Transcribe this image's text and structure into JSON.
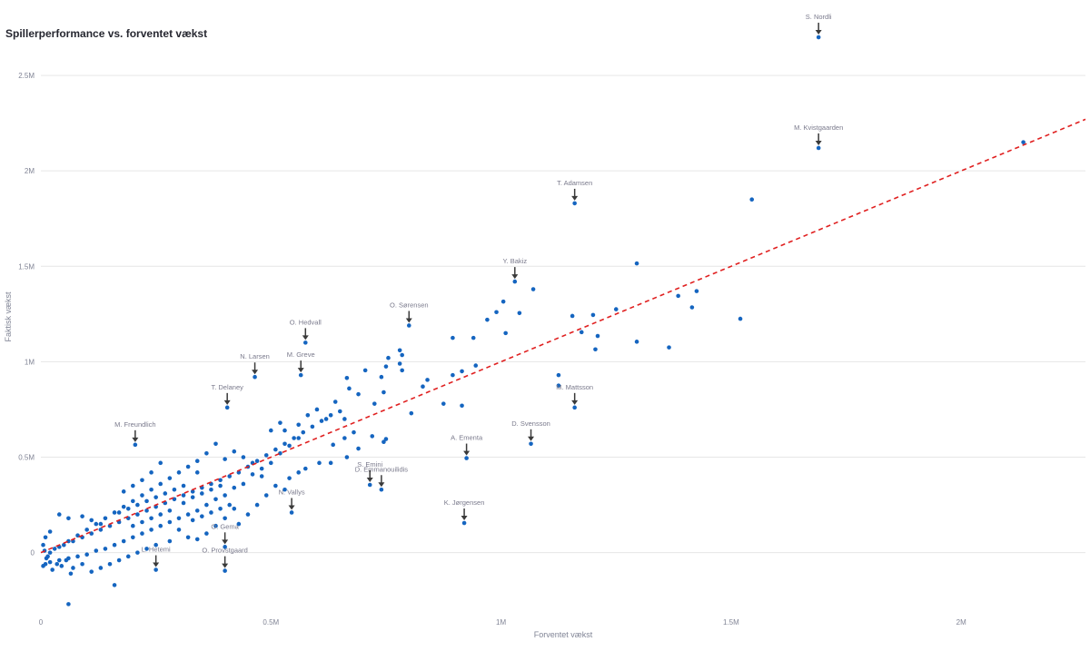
{
  "chart_data": {
    "type": "scatter",
    "title": "Spillerperformance vs. forventet vækst",
    "xlabel": "Forventet vækst",
    "ylabel": "Faktisk vækst",
    "xlim": [
      0,
      2270000
    ],
    "ylim": [
      -330000,
      2800000
    ],
    "x_ticks": [
      {
        "value": 0,
        "label": "0"
      },
      {
        "value": 500000,
        "label": "0.5M"
      },
      {
        "value": 1000000,
        "label": "1M"
      },
      {
        "value": 1500000,
        "label": "1.5M"
      },
      {
        "value": 2000000,
        "label": "2M"
      }
    ],
    "y_ticks": [
      {
        "value": 0,
        "label": "0"
      },
      {
        "value": 500000,
        "label": "0.5M"
      },
      {
        "value": 1000000,
        "label": "1M"
      },
      {
        "value": 1500000,
        "label": "1.5M"
      },
      {
        "value": 2000000,
        "label": "2M"
      },
      {
        "value": 2500000,
        "label": "2.5M"
      }
    ],
    "grid": true,
    "legend": "none",
    "point_color": "#1565c0",
    "trendline": {
      "color": "#e02020",
      "style": "dashed",
      "slope": 1.0,
      "intercept": 0,
      "x_range": [
        0,
        2270000
      ]
    },
    "annotation_color": "#7a7a8c",
    "arrow_color": "#3a3a3a",
    "annotations": [
      {
        "name": "S. Nordli",
        "x": 1690000,
        "y": 2700000
      },
      {
        "name": "M. Kvistgaarden",
        "x": 1690000,
        "y": 2120000
      },
      {
        "name": "T. Adamsen",
        "x": 1160000,
        "y": 1830000
      },
      {
        "name": "Y. Bakiz",
        "x": 1030000,
        "y": 1420000
      },
      {
        "name": "O. Sørensen",
        "x": 800000,
        "y": 1190000
      },
      {
        "name": "O. Hedvall",
        "x": 575000,
        "y": 1100000
      },
      {
        "name": "N. Larsen",
        "x": 465000,
        "y": 920000
      },
      {
        "name": "M. Greve",
        "x": 565000,
        "y": 930000
      },
      {
        "name": "T. Delaney",
        "x": 405000,
        "y": 760000
      },
      {
        "name": "M. Mattsson",
        "x": 1160000,
        "y": 760000
      },
      {
        "name": "M. Freundlich",
        "x": 205000,
        "y": 565000
      },
      {
        "name": "D. Svensson",
        "x": 1065000,
        "y": 570000
      },
      {
        "name": "A. Ementa",
        "x": 925000,
        "y": 495000
      },
      {
        "name": "S. Emini",
        "x": 715000,
        "y": 355000
      },
      {
        "name": "D. Emmanouilidis",
        "x": 740000,
        "y": 330000
      },
      {
        "name": "N. Vallys",
        "x": 545000,
        "y": 210000
      },
      {
        "name": "K. Jørgensen",
        "x": 920000,
        "y": 155000
      },
      {
        "name": "O. Gema",
        "x": 400000,
        "y": 30000
      },
      {
        "name": "L. Hetemi",
        "x": 250000,
        "y": -90000
      },
      {
        "name": "O. Provstgaard",
        "x": 400000,
        "y": -95000
      }
    ],
    "points": [
      [
        1690000,
        2700000
      ],
      [
        1690000,
        2120000
      ],
      [
        1160000,
        1830000
      ],
      [
        1030000,
        1420000
      ],
      [
        800000,
        1190000
      ],
      [
        575000,
        1100000
      ],
      [
        465000,
        920000
      ],
      [
        565000,
        930000
      ],
      [
        405000,
        760000
      ],
      [
        1160000,
        760000
      ],
      [
        205000,
        565000
      ],
      [
        1065000,
        570000
      ],
      [
        925000,
        495000
      ],
      [
        715000,
        355000
      ],
      [
        740000,
        330000
      ],
      [
        545000,
        210000
      ],
      [
        920000,
        155000
      ],
      [
        400000,
        30000
      ],
      [
        250000,
        -90000
      ],
      [
        400000,
        -95000
      ],
      [
        2135000,
        2150000
      ],
      [
        1545000,
        1850000
      ],
      [
        1295000,
        1515000
      ],
      [
        1425000,
        1370000
      ],
      [
        1385000,
        1345000
      ],
      [
        1415000,
        1285000
      ],
      [
        1520000,
        1225000
      ],
      [
        1365000,
        1075000
      ],
      [
        1295000,
        1105000
      ],
      [
        1250000,
        1275000
      ],
      [
        1200000,
        1245000
      ],
      [
        1155000,
        1240000
      ],
      [
        1175000,
        1155000
      ],
      [
        1210000,
        1135000
      ],
      [
        1205000,
        1065000
      ],
      [
        1125000,
        930000
      ],
      [
        1125000,
        875000
      ],
      [
        1070000,
        1380000
      ],
      [
        1040000,
        1255000
      ],
      [
        1005000,
        1315000
      ],
      [
        1010000,
        1150000
      ],
      [
        990000,
        1260000
      ],
      [
        970000,
        1220000
      ],
      [
        940000,
        1125000
      ],
      [
        895000,
        1125000
      ],
      [
        945000,
        980000
      ],
      [
        915000,
        950000
      ],
      [
        895000,
        930000
      ],
      [
        875000,
        780000
      ],
      [
        915000,
        770000
      ],
      [
        840000,
        905000
      ],
      [
        830000,
        870000
      ],
      [
        805000,
        730000
      ],
      [
        785000,
        1035000
      ],
      [
        780000,
        990000
      ],
      [
        785000,
        955000
      ],
      [
        780000,
        1060000
      ],
      [
        755000,
        1020000
      ],
      [
        750000,
        975000
      ],
      [
        740000,
        920000
      ],
      [
        745000,
        840000
      ],
      [
        725000,
        780000
      ],
      [
        705000,
        955000
      ],
      [
        665000,
        915000
      ],
      [
        670000,
        860000
      ],
      [
        690000,
        830000
      ],
      [
        640000,
        790000
      ],
      [
        660000,
        700000
      ],
      [
        720000,
        610000
      ],
      [
        750000,
        595000
      ],
      [
        745000,
        580000
      ],
      [
        690000,
        545000
      ],
      [
        665000,
        500000
      ],
      [
        635000,
        565000
      ],
      [
        630000,
        470000
      ],
      [
        605000,
        470000
      ],
      [
        575000,
        440000
      ],
      [
        560000,
        420000
      ],
      [
        540000,
        390000
      ],
      [
        520000,
        680000
      ],
      [
        560000,
        670000
      ],
      [
        530000,
        640000
      ],
      [
        500000,
        640000
      ],
      [
        560000,
        600000
      ],
      [
        540000,
        560000
      ],
      [
        520000,
        520000
      ],
      [
        500000,
        470000
      ],
      [
        480000,
        440000
      ],
      [
        460000,
        410000
      ],
      [
        440000,
        360000
      ],
      [
        420000,
        340000
      ],
      [
        400000,
        300000
      ],
      [
        380000,
        280000
      ],
      [
        360000,
        250000
      ],
      [
        340000,
        220000
      ],
      [
        320000,
        200000
      ],
      [
        300000,
        180000
      ],
      [
        280000,
        160000
      ],
      [
        260000,
        140000
      ],
      [
        240000,
        120000
      ],
      [
        220000,
        100000
      ],
      [
        200000,
        80000
      ],
      [
        180000,
        60000
      ],
      [
        160000,
        40000
      ],
      [
        140000,
        20000
      ],
      [
        120000,
        10000
      ],
      [
        100000,
        -10000
      ],
      [
        80000,
        -20000
      ],
      [
        60000,
        -30000
      ],
      [
        40000,
        -40000
      ],
      [
        20000,
        -50000
      ],
      [
        10000,
        -60000
      ],
      [
        5000,
        -70000
      ],
      [
        30000,
        20000
      ],
      [
        50000,
        40000
      ],
      [
        70000,
        60000
      ],
      [
        90000,
        80000
      ],
      [
        110000,
        100000
      ],
      [
        130000,
        120000
      ],
      [
        150000,
        140000
      ],
      [
        170000,
        160000
      ],
      [
        190000,
        180000
      ],
      [
        210000,
        200000
      ],
      [
        230000,
        220000
      ],
      [
        250000,
        240000
      ],
      [
        270000,
        260000
      ],
      [
        290000,
        280000
      ],
      [
        310000,
        300000
      ],
      [
        330000,
        320000
      ],
      [
        350000,
        340000
      ],
      [
        370000,
        360000
      ],
      [
        390000,
        380000
      ],
      [
        410000,
        400000
      ],
      [
        430000,
        420000
      ],
      [
        450000,
        450000
      ],
      [
        470000,
        480000
      ],
      [
        490000,
        510000
      ],
      [
        510000,
        540000
      ],
      [
        530000,
        570000
      ],
      [
        550000,
        600000
      ],
      [
        570000,
        630000
      ],
      [
        590000,
        660000
      ],
      [
        610000,
        690000
      ],
      [
        630000,
        720000
      ],
      [
        650000,
        740000
      ],
      [
        380000,
        570000
      ],
      [
        360000,
        520000
      ],
      [
        340000,
        480000
      ],
      [
        320000,
        450000
      ],
      [
        300000,
        420000
      ],
      [
        280000,
        390000
      ],
      [
        260000,
        360000
      ],
      [
        240000,
        330000
      ],
      [
        220000,
        300000
      ],
      [
        200000,
        270000
      ],
      [
        180000,
        240000
      ],
      [
        160000,
        210000
      ],
      [
        140000,
        180000
      ],
      [
        120000,
        150000
      ],
      [
        100000,
        120000
      ],
      [
        80000,
        90000
      ],
      [
        60000,
        60000
      ],
      [
        40000,
        30000
      ],
      [
        20000,
        0
      ],
      [
        15000,
        -20000
      ],
      [
        300000,
        120000
      ],
      [
        320000,
        80000
      ],
      [
        280000,
        60000
      ],
      [
        250000,
        40000
      ],
      [
        230000,
        20000
      ],
      [
        210000,
        0
      ],
      [
        190000,
        -20000
      ],
      [
        170000,
        -40000
      ],
      [
        150000,
        -60000
      ],
      [
        130000,
        -80000
      ],
      [
        110000,
        -100000
      ],
      [
        90000,
        -60000
      ],
      [
        70000,
        -80000
      ],
      [
        55000,
        -40000
      ],
      [
        35000,
        -60000
      ],
      [
        25000,
        -90000
      ],
      [
        45000,
        -70000
      ],
      [
        65000,
        -110000
      ],
      [
        160000,
        -170000
      ],
      [
        60000,
        -270000
      ],
      [
        430000,
        150000
      ],
      [
        450000,
        200000
      ],
      [
        470000,
        250000
      ],
      [
        490000,
        300000
      ],
      [
        510000,
        350000
      ],
      [
        530000,
        330000
      ],
      [
        420000,
        230000
      ],
      [
        400000,
        180000
      ],
      [
        380000,
        140000
      ],
      [
        360000,
        100000
      ],
      [
        340000,
        70000
      ],
      [
        340000,
        420000
      ],
      [
        310000,
        350000
      ],
      [
        290000,
        330000
      ],
      [
        270000,
        310000
      ],
      [
        250000,
        290000
      ],
      [
        230000,
        270000
      ],
      [
        210000,
        250000
      ],
      [
        190000,
        230000
      ],
      [
        170000,
        210000
      ],
      [
        400000,
        490000
      ],
      [
        420000,
        530000
      ],
      [
        440000,
        500000
      ],
      [
        460000,
        470000
      ],
      [
        480000,
        400000
      ],
      [
        410000,
        250000
      ],
      [
        390000,
        230000
      ],
      [
        370000,
        210000
      ],
      [
        350000,
        190000
      ],
      [
        330000,
        170000
      ],
      [
        90000,
        190000
      ],
      [
        110000,
        170000
      ],
      [
        130000,
        150000
      ],
      [
        60000,
        180000
      ],
      [
        40000,
        200000
      ],
      [
        20000,
        110000
      ],
      [
        10000,
        80000
      ],
      [
        5000,
        40000
      ],
      [
        8000,
        10000
      ],
      [
        12000,
        -30000
      ],
      [
        600000,
        750000
      ],
      [
        620000,
        700000
      ],
      [
        580000,
        720000
      ],
      [
        660000,
        600000
      ],
      [
        680000,
        630000
      ],
      [
        260000,
        470000
      ],
      [
        240000,
        420000
      ],
      [
        220000,
        380000
      ],
      [
        200000,
        350000
      ],
      [
        180000,
        320000
      ],
      [
        200000,
        140000
      ],
      [
        220000,
        160000
      ],
      [
        240000,
        180000
      ],
      [
        260000,
        200000
      ],
      [
        280000,
        220000
      ],
      [
        310000,
        260000
      ],
      [
        330000,
        290000
      ],
      [
        350000,
        310000
      ],
      [
        370000,
        330000
      ],
      [
        390000,
        350000
      ]
    ]
  }
}
